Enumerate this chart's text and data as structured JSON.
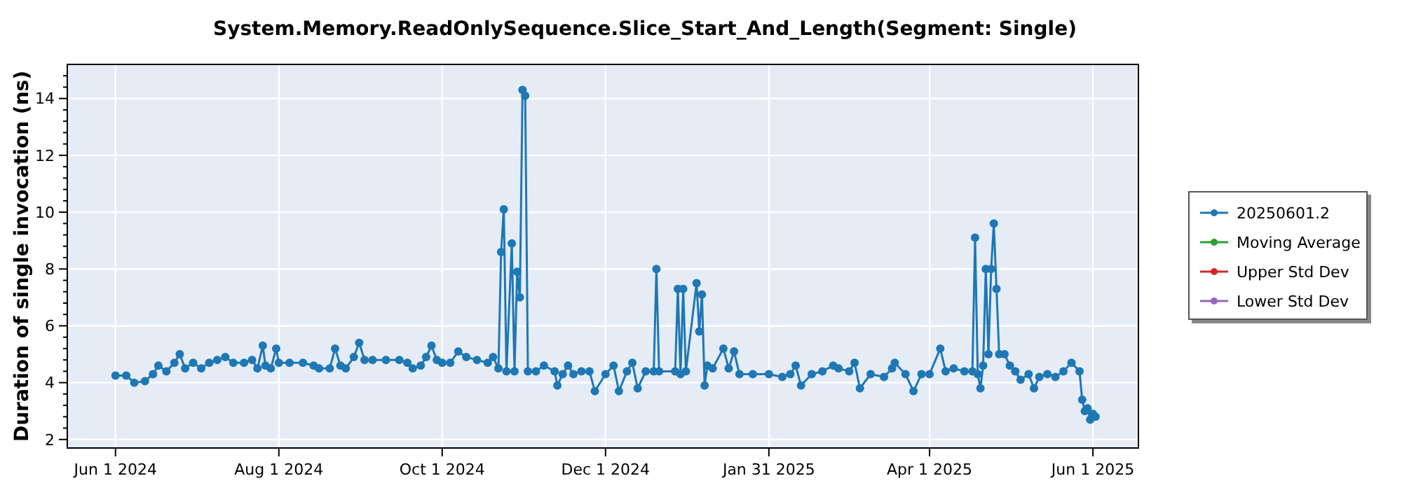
{
  "chart_data": {
    "type": "line",
    "title": "System.Memory.ReadOnlySequence.Slice_Start_And_Length(Segment: Single)",
    "ylabel": "Duration of single invocation (ns)",
    "xlim": [
      "2024-05-14",
      "2025-06-18"
    ],
    "xticks": [
      {
        "value": "2024-06-01",
        "label": "Jun 1 2024"
      },
      {
        "value": "2024-08-01",
        "label": "Aug 1 2024"
      },
      {
        "value": "2024-10-01",
        "label": "Oct 1 2024"
      },
      {
        "value": "2024-12-01",
        "label": "Dec 1 2024"
      },
      {
        "value": "2025-01-31",
        "label": "Jan 31 2025"
      },
      {
        "value": "2025-04-01",
        "label": "Apr 1 2025"
      },
      {
        "value": "2025-06-01",
        "label": "Jun 1 2025"
      }
    ],
    "ylim": [
      1.7,
      15.2
    ],
    "yticks": [
      2,
      {
        "value": 2.4,
        "label": null
      },
      {
        "value": 2.8,
        "label": null
      },
      {
        "value": 3.2,
        "label": null
      },
      {
        "value": 3.6,
        "label": null
      },
      4,
      {
        "value": 4.4,
        "label": null
      },
      {
        "value": 4.8,
        "label": null
      },
      {
        "value": 5.2,
        "label": null
      },
      {
        "value": 5.6,
        "label": null
      },
      6,
      {
        "value": 6.4,
        "label": null
      },
      {
        "value": 6.8,
        "label": null
      },
      {
        "value": 7.2,
        "label": null
      },
      {
        "value": 7.6,
        "label": null
      },
      8,
      {
        "value": 8.4,
        "label": null
      },
      {
        "value": 8.8,
        "label": null
      },
      {
        "value": 9.2,
        "label": null
      },
      {
        "value": 9.6,
        "label": null
      },
      10,
      {
        "value": 10.4,
        "label": null
      },
      {
        "value": 10.8,
        "label": null
      },
      {
        "value": 11.2,
        "label": null
      },
      {
        "value": 11.6,
        "label": null
      },
      12,
      {
        "value": 12.4,
        "label": null
      },
      {
        "value": 12.8,
        "label": null
      },
      {
        "value": 13.2,
        "label": null
      },
      {
        "value": 13.6,
        "label": null
      },
      14,
      {
        "value": 14.4,
        "label": null
      },
      {
        "value": 14.8,
        "label": null
      }
    ],
    "grid": true,
    "legend": "right",
    "marker": "circle",
    "line_style": "solid",
    "series": [
      {
        "name": "20250601.2",
        "color": "#1f77b4",
        "x": [
          "2024-06-01",
          "2024-06-05",
          "2024-06-08",
          "2024-06-12",
          "2024-06-15",
          "2024-06-17",
          "2024-06-20",
          "2024-06-23",
          "2024-06-25",
          "2024-06-27",
          "2024-06-30",
          "2024-07-03",
          "2024-07-06",
          "2024-07-09",
          "2024-07-12",
          "2024-07-15",
          "2024-07-19",
          "2024-07-22",
          "2024-07-24",
          "2024-07-26",
          "2024-07-27",
          "2024-07-29",
          "2024-07-31",
          "2024-08-01",
          "2024-08-05",
          "2024-08-10",
          "2024-08-14",
          "2024-08-16",
          "2024-08-20",
          "2024-08-22",
          "2024-08-24",
          "2024-08-26",
          "2024-08-29",
          "2024-08-31",
          "2024-09-02",
          "2024-09-05",
          "2024-09-10",
          "2024-09-15",
          "2024-09-18",
          "2024-09-20",
          "2024-09-23",
          "2024-09-25",
          "2024-09-27",
          "2024-09-29",
          "2024-10-01",
          "2024-10-04",
          "2024-10-07",
          "2024-10-10",
          "2024-10-14",
          "2024-10-18",
          "2024-10-20",
          "2024-10-22",
          "2024-10-23",
          "2024-10-24",
          "2024-10-25",
          "2024-10-27",
          "2024-10-28",
          "2024-10-29",
          "2024-10-30",
          "2024-10-31",
          "2024-11-01",
          "2024-11-02",
          "2024-11-05",
          "2024-11-08",
          "2024-11-12",
          "2024-11-13",
          "2024-11-15",
          "2024-11-17",
          "2024-11-19",
          "2024-11-22",
          "2024-11-25",
          "2024-11-27",
          "2024-12-01",
          "2024-12-04",
          "2024-12-06",
          "2024-12-09",
          "2024-12-11",
          "2024-12-13",
          "2024-12-16",
          "2024-12-19",
          "2024-12-20",
          "2024-12-21",
          "2024-12-27",
          "2024-12-28",
          "2024-12-29",
          "2024-12-30",
          "2024-12-31",
          "2025-01-04",
          "2025-01-05",
          "2025-01-06",
          "2025-01-07",
          "2025-01-08",
          "2025-01-10",
          "2025-01-14",
          "2025-01-16",
          "2025-01-18",
          "2025-01-20",
          "2025-01-25",
          "2025-01-31",
          "2025-02-05",
          "2025-02-08",
          "2025-02-10",
          "2025-02-12",
          "2025-02-16",
          "2025-02-20",
          "2025-02-24",
          "2025-02-26",
          "2025-03-02",
          "2025-03-04",
          "2025-03-06",
          "2025-03-10",
          "2025-03-15",
          "2025-03-18",
          "2025-03-19",
          "2025-03-23",
          "2025-03-26",
          "2025-03-29",
          "2025-04-01",
          "2025-04-05",
          "2025-04-07",
          "2025-04-10",
          "2025-04-14",
          "2025-04-17",
          "2025-04-18",
          "2025-04-19",
          "2025-04-20",
          "2025-04-21",
          "2025-04-22",
          "2025-04-23",
          "2025-04-24",
          "2025-04-25",
          "2025-04-26",
          "2025-04-27",
          "2025-04-29",
          "2025-05-01",
          "2025-05-03",
          "2025-05-05",
          "2025-05-08",
          "2025-05-10",
          "2025-05-12",
          "2025-05-15",
          "2025-05-18",
          "2025-05-21",
          "2025-05-24",
          "2025-05-27",
          "2025-05-28",
          "2025-05-29",
          "2025-05-30",
          "2025-05-31",
          "2025-06-01",
          "2025-06-02"
        ],
        "values": [
          4.25,
          4.25,
          4.0,
          4.05,
          4.3,
          4.6,
          4.4,
          4.7,
          5.0,
          4.5,
          4.7,
          4.5,
          4.7,
          4.8,
          4.9,
          4.7,
          4.7,
          4.8,
          4.5,
          5.3,
          4.6,
          4.5,
          5.2,
          4.7,
          4.7,
          4.7,
          4.6,
          4.5,
          4.5,
          5.2,
          4.6,
          4.5,
          4.9,
          5.4,
          4.8,
          4.8,
          4.8,
          4.8,
          4.7,
          4.5,
          4.6,
          4.9,
          5.3,
          4.8,
          4.7,
          4.7,
          5.1,
          4.9,
          4.8,
          4.7,
          4.9,
          4.5,
          8.6,
          10.1,
          4.4,
          8.9,
          4.4,
          7.9,
          7.0,
          14.3,
          14.1,
          4.4,
          4.4,
          4.6,
          4.4,
          3.9,
          4.3,
          4.6,
          4.3,
          4.4,
          4.4,
          3.7,
          4.3,
          4.6,
          3.7,
          4.4,
          4.7,
          3.8,
          4.4,
          4.4,
          8.0,
          4.4,
          4.4,
          7.3,
          4.3,
          7.3,
          4.4,
          7.5,
          5.8,
          7.1,
          3.9,
          4.6,
          4.5,
          5.2,
          4.5,
          5.1,
          4.3,
          4.3,
          4.3,
          4.2,
          4.3,
          4.6,
          3.9,
          4.3,
          4.4,
          4.6,
          4.5,
          4.4,
          4.7,
          3.8,
          4.3,
          4.2,
          4.5,
          4.7,
          4.3,
          3.7,
          4.3,
          4.3,
          5.2,
          4.4,
          4.5,
          4.4,
          4.4,
          9.1,
          4.3,
          3.8,
          4.6,
          8.0,
          5.0,
          8.0,
          9.6,
          7.3,
          5.0,
          5.0,
          4.6,
          4.4,
          4.1,
          4.3,
          3.8,
          4.2,
          4.3,
          4.2,
          4.4,
          4.7,
          4.4,
          3.4,
          3.0,
          3.1,
          2.7,
          2.9,
          2.8
        ]
      },
      {
        "name": "Moving Average",
        "color": "#2ca02c"
      },
      {
        "name": "Upper Std Dev",
        "color": "#d62728"
      },
      {
        "name": "Lower Std Dev",
        "color": "#9467bd"
      }
    ]
  }
}
